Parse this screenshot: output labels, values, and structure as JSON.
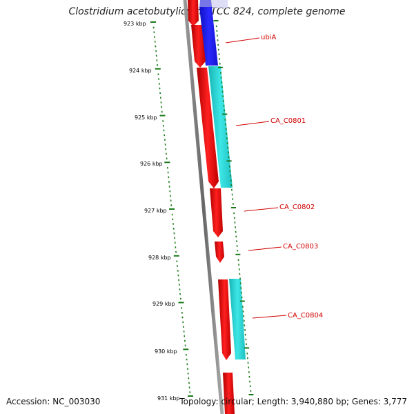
{
  "title": "Clostridium acetobutylicum ATCC 824, complete genome",
  "accession_text": "Accession: NC_003030",
  "summary_text": "Topology: circular; Length: 3,940,880 bp; Genes: 3,777",
  "ruler": {
    "tick_labels": [
      "923 kbp",
      "924 kbp",
      "925 kbp",
      "926 kbp",
      "927 kbp",
      "928 kbp",
      "929 kbp",
      "930 kbp",
      "931 kbp"
    ]
  },
  "genes": [
    {
      "name": "ubiA",
      "label_color": "#d00000"
    },
    {
      "name": "CA_C0801",
      "label_color": "#d00000"
    },
    {
      "name": "CA_C0802",
      "label_color": "#d00000"
    },
    {
      "name": "CA_C0803",
      "label_color": "#d00000"
    },
    {
      "name": "CA_C0804",
      "label_color": "#d00000"
    }
  ],
  "colors": {
    "cds": "#ff0000",
    "rRNA_blue": "#0000ff",
    "feature_cyan": "#22d3d3",
    "backbone": "#777777",
    "tick": "#1a7a1a"
  }
}
